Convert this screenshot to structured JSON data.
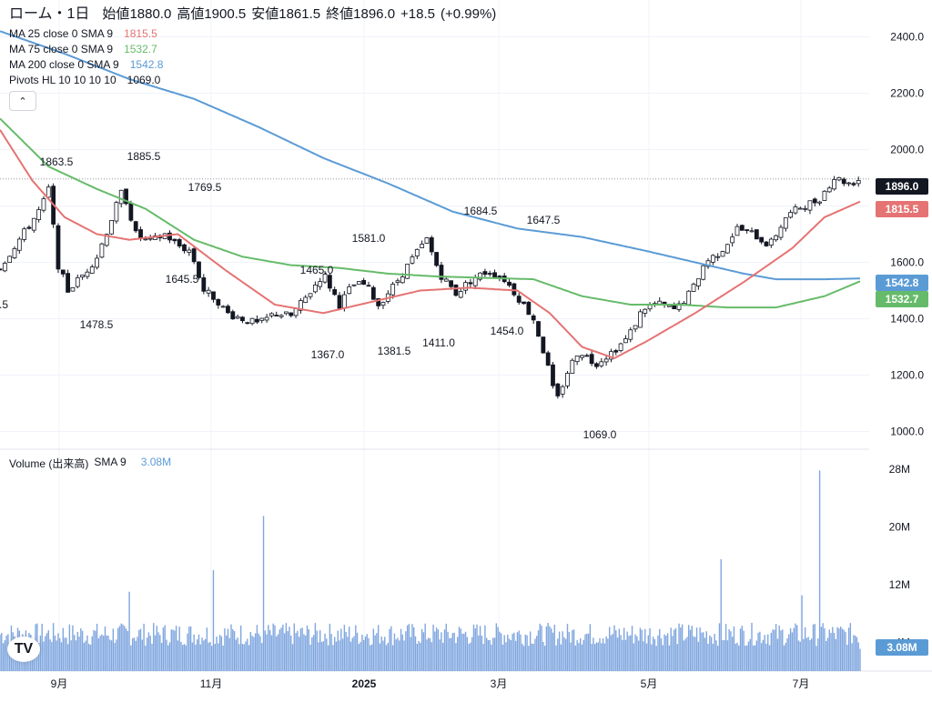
{
  "header": {
    "symbol": "ローム・1日",
    "open_label": "始値",
    "open": "1880.0",
    "high_label": "高値",
    "high": "1900.5",
    "low_label": "安値",
    "low": "1861.5",
    "close_label": "終値",
    "close": "1896.0",
    "change": "+18.5",
    "change_pct": "(+0.99%)"
  },
  "indicators": [
    {
      "label": "MA 25 close 0 SMA 9",
      "value": "1815.5",
      "color": "#e57373"
    },
    {
      "label": "MA 75 close 0 SMA 9",
      "value": "1532.7",
      "color": "#66bb6a"
    },
    {
      "label": "MA 200 close 0 SMA 9",
      "value": "1542.8",
      "color": "#5b9bd5"
    },
    {
      "label": "Pivots HL 10 10 10 10",
      "value": "1069.0",
      "color": "#131722"
    }
  ],
  "volume": {
    "label": "Volume (出来高)",
    "sma": "SMA 9",
    "value": "3.08M",
    "color": "#5b9bd5"
  },
  "price_axis_labels": [
    "2400.0",
    "2200.0",
    "2000.0",
    "1800.0",
    "1600.0",
    "1400.0",
    "1200.0",
    "1000.0"
  ],
  "volume_axis_labels": [
    "28M",
    "20M",
    "12M",
    "4M"
  ],
  "time_axis_labels": [
    "9月",
    "11月",
    "2025",
    "3月",
    "5月",
    "7月"
  ],
  "price_tags": [
    {
      "value": "1896.0",
      "color": "#131722"
    },
    {
      "value": "1815.5",
      "color": "#e57373"
    },
    {
      "value": "1542.8",
      "color": "#5b9bd5"
    },
    {
      "value": "1532.7",
      "color": "#66bb6a"
    }
  ],
  "pivot_labels": [
    "1863.5",
    "1885.5",
    "1769.5",
    "1645.5",
    "1478.5",
    "1465.0",
    "1581.0",
    "1684.5",
    "1647.5",
    "1367.0",
    "1381.5",
    "1411.0",
    "1454.0",
    "1069.0",
    ".5"
  ],
  "chart_data": {
    "type": "candlestick",
    "ylim": [
      950,
      2450
    ],
    "volume_ylim": [
      0,
      30
    ],
    "volume_unit": "M",
    "close_keyframes": [
      [
        0,
        1580
      ],
      [
        8,
        1650
      ],
      [
        18,
        1730
      ],
      [
        26,
        1800
      ],
      [
        30,
        1860
      ],
      [
        36,
        1590
      ],
      [
        42,
        1500
      ],
      [
        52,
        1560
      ],
      [
        60,
        1620
      ],
      [
        68,
        1740
      ],
      [
        76,
        1860
      ],
      [
        84,
        1700
      ],
      [
        92,
        1670
      ],
      [
        102,
        1700
      ],
      [
        110,
        1660
      ],
      [
        118,
        1640
      ],
      [
        126,
        1500
      ],
      [
        134,
        1470
      ],
      [
        140,
        1420
      ],
      [
        150,
        1400
      ],
      [
        160,
        1380
      ],
      [
        170,
        1420
      ],
      [
        180,
        1410
      ],
      [
        190,
        1480
      ],
      [
        200,
        1560
      ],
      [
        210,
        1450
      ],
      [
        218,
        1520
      ],
      [
        226,
        1520
      ],
      [
        234,
        1450
      ],
      [
        244,
        1520
      ],
      [
        256,
        1620
      ],
      [
        264,
        1680
      ],
      [
        272,
        1560
      ],
      [
        282,
        1490
      ],
      [
        292,
        1540
      ],
      [
        302,
        1570
      ],
      [
        312,
        1540
      ],
      [
        320,
        1480
      ],
      [
        330,
        1400
      ],
      [
        338,
        1250
      ],
      [
        344,
        1100
      ],
      [
        350,
        1200
      ],
      [
        358,
        1290
      ],
      [
        368,
        1240
      ],
      [
        378,
        1280
      ],
      [
        388,
        1330
      ],
      [
        398,
        1440
      ],
      [
        408,
        1450
      ],
      [
        418,
        1430
      ],
      [
        428,
        1500
      ],
      [
        436,
        1600
      ],
      [
        446,
        1640
      ],
      [
        456,
        1720
      ],
      [
        466,
        1700
      ],
      [
        476,
        1660
      ],
      [
        486,
        1760
      ],
      [
        496,
        1800
      ],
      [
        506,
        1820
      ],
      [
        516,
        1900
      ],
      [
        526,
        1880
      ],
      [
        532,
        1896
      ]
    ],
    "ma25_keyframes": [
      [
        0,
        2070
      ],
      [
        20,
        1890
      ],
      [
        40,
        1760
      ],
      [
        60,
        1700
      ],
      [
        80,
        1680
      ],
      [
        110,
        1700
      ],
      [
        140,
        1570
      ],
      [
        170,
        1450
      ],
      [
        200,
        1420
      ],
      [
        230,
        1460
      ],
      [
        260,
        1500
      ],
      [
        290,
        1510
      ],
      [
        320,
        1500
      ],
      [
        340,
        1420
      ],
      [
        360,
        1300
      ],
      [
        380,
        1260
      ],
      [
        400,
        1320
      ],
      [
        430,
        1420
      ],
      [
        460,
        1530
      ],
      [
        490,
        1650
      ],
      [
        510,
        1760
      ],
      [
        532,
        1815.5
      ]
    ],
    "ma75_keyframes": [
      [
        0,
        2110
      ],
      [
        30,
        1940
      ],
      [
        60,
        1860
      ],
      [
        90,
        1790
      ],
      [
        120,
        1680
      ],
      [
        150,
        1620
      ],
      [
        180,
        1590
      ],
      [
        210,
        1580
      ],
      [
        240,
        1560
      ],
      [
        270,
        1550
      ],
      [
        300,
        1545
      ],
      [
        330,
        1540
      ],
      [
        360,
        1480
      ],
      [
        390,
        1450
      ],
      [
        420,
        1450
      ],
      [
        450,
        1440
      ],
      [
        480,
        1440
      ],
      [
        510,
        1480
      ],
      [
        532,
        1532.7
      ]
    ],
    "ma200_keyframes": [
      [
        0,
        2420
      ],
      [
        40,
        2340
      ],
      [
        80,
        2250
      ],
      [
        120,
        2180
      ],
      [
        160,
        2080
      ],
      [
        200,
        1970
      ],
      [
        240,
        1880
      ],
      [
        280,
        1780
      ],
      [
        320,
        1720
      ],
      [
        360,
        1690
      ],
      [
        400,
        1640
      ],
      [
        430,
        1600
      ],
      [
        460,
        1560
      ],
      [
        480,
        1540
      ],
      [
        510,
        1540
      ],
      [
        532,
        1542.8
      ]
    ],
    "volume_last": 3.08,
    "volume_spikes": [
      [
        80,
        11
      ],
      [
        132,
        14
      ],
      [
        163,
        21.5
      ],
      [
        446,
        15.5
      ],
      [
        496,
        10.5
      ],
      [
        507,
        27.8
      ]
    ]
  }
}
